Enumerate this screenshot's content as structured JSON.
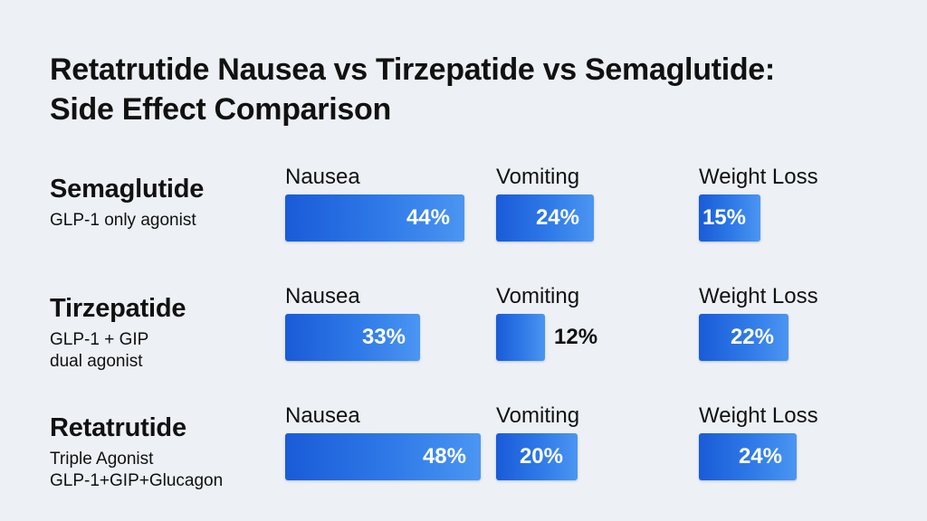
{
  "chart_data": {
    "type": "bar",
    "title_lines": [
      "Retatrutide Nausea vs Tirzepatide vs Semaglutide:",
      "Side Effect Comparison"
    ],
    "unit": "%",
    "metrics": [
      "Nausea",
      "Vomiting",
      "Weight Loss"
    ],
    "drugs": [
      {
        "name": "Semaglutide",
        "subtitle_lines": [
          "GLP-1 only agonist"
        ],
        "values": [
          44,
          24,
          15
        ],
        "labels": [
          "44%",
          "24%",
          "15%"
        ]
      },
      {
        "name": "Tirzepatide",
        "subtitle_lines": [
          "GLP-1 + GIP",
          "dual agonist"
        ],
        "values": [
          33,
          12,
          22
        ],
        "labels": [
          "33%",
          "12%",
          "22%"
        ]
      },
      {
        "name": "Retatrutide",
        "subtitle_lines": [
          "Triple Agonist",
          "GLP-1+GIP+Glucagon"
        ],
        "values": [
          48,
          20,
          24
        ],
        "labels": [
          "48%",
          "20%",
          "24%"
        ]
      }
    ]
  }
}
